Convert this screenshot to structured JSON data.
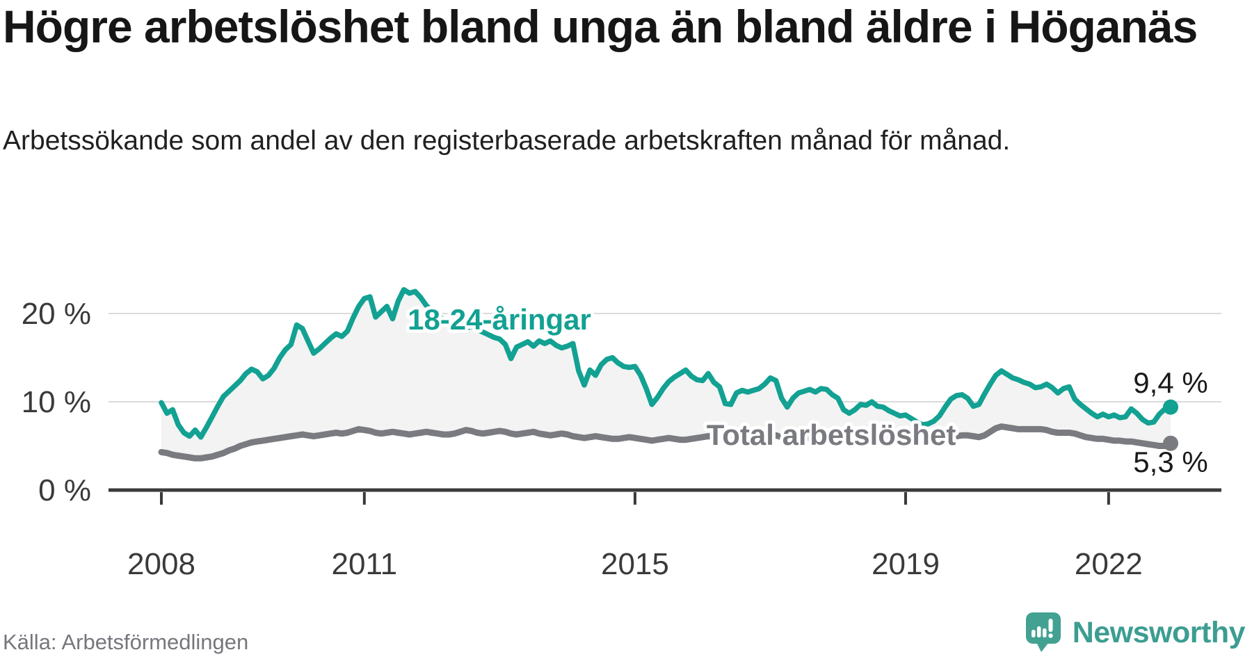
{
  "title": "Högre arbetslöshet bland unga än bland äldre i Höganäs",
  "subtitle": "Arbetssökande som andel av den registerbaserade arbetskraften månad för månad.",
  "source_note": "Källa: Arbetsförmedlingen",
  "brand": {
    "name": "Newsworthy",
    "icon": "speech-bubble-bar-chart-icon",
    "color": "#3c9d91"
  },
  "colors": {
    "youth_line": "#12a192",
    "total_line": "#7a7b80",
    "between_area_fill": "#f3f3f3",
    "gridline": "#dbdbdb",
    "axis": "#3a3a3a",
    "label_dark": "#1a1a1a",
    "source_text": "#76777d"
  },
  "chart_data": {
    "type": "line",
    "title": "Högre arbetslöshet bland unga än bland äldre i Höganäs",
    "subtitle": "Arbetssökande som andel av den registerbaserade arbetskraften månad för månad.",
    "x_start": "2008-01",
    "x_interval": "month",
    "x_end": "2022-12",
    "ylim": [
      0,
      23.5
    ],
    "grid": true,
    "legend_position": "direct-labels-on-chart",
    "fill_between_series": true,
    "y_ticks": [
      {
        "value": 0,
        "label": "0 %"
      },
      {
        "value": 10,
        "label": "10 %"
      },
      {
        "value": 20,
        "label": "20 %"
      }
    ],
    "x_ticks": [
      {
        "month_index": 0,
        "label": "2008"
      },
      {
        "month_index": 36,
        "label": "2011"
      },
      {
        "month_index": 84,
        "label": "2015"
      },
      {
        "month_index": 132,
        "label": "2019"
      },
      {
        "month_index": 168,
        "label": "2022"
      }
    ],
    "series": [
      {
        "name": "18-24-åringar",
        "color": "#12a192",
        "end_label": "9,4 %",
        "end_value": 9.4,
        "values": [
          9.9,
          8.7,
          9.1,
          7.4,
          6.5,
          6.1,
          6.8,
          6.0,
          7.1,
          8.3,
          9.5,
          10.6,
          11.2,
          11.8,
          12.4,
          13.2,
          13.7,
          13.4,
          12.6,
          13.0,
          13.8,
          15.0,
          15.9,
          16.5,
          18.7,
          18.3,
          16.9,
          15.5,
          16.0,
          16.6,
          17.2,
          17.7,
          17.4,
          18.0,
          19.5,
          20.8,
          21.7,
          21.9,
          19.6,
          20.2,
          20.8,
          19.4,
          21.4,
          22.7,
          22.3,
          22.5,
          21.8,
          20.9,
          20.3,
          19.8,
          19.3,
          18.8,
          18.4,
          18.1,
          18.3,
          18.6,
          18.2,
          17.9,
          17.6,
          17.3,
          17.1,
          16.5,
          14.9,
          16.2,
          16.5,
          16.8,
          16.3,
          16.9,
          16.6,
          16.9,
          16.4,
          16.1,
          16.3,
          16.6,
          13.5,
          11.9,
          13.6,
          13.0,
          14.2,
          14.8,
          15.0,
          14.4,
          14.0,
          13.9,
          14.0,
          13.0,
          11.5,
          9.7,
          10.5,
          11.5,
          12.3,
          12.8,
          13.2,
          13.6,
          12.9,
          12.5,
          12.4,
          13.2,
          12.2,
          11.7,
          9.8,
          9.7,
          11.0,
          11.3,
          11.1,
          11.3,
          11.5,
          12.0,
          12.7,
          12.4,
          10.4,
          9.4,
          10.4,
          11.0,
          11.2,
          11.4,
          11.1,
          11.5,
          11.4,
          10.8,
          10.4,
          9.1,
          8.7,
          9.1,
          9.7,
          9.6,
          10.0,
          9.5,
          9.4,
          9.0,
          8.7,
          8.4,
          8.5,
          8.1,
          7.7,
          7.4,
          7.5,
          7.8,
          8.4,
          9.4,
          10.3,
          10.7,
          10.8,
          10.4,
          9.5,
          9.7,
          10.9,
          12.0,
          13.0,
          13.5,
          13.1,
          12.7,
          12.5,
          12.2,
          12.0,
          11.6,
          11.7,
          12.0,
          11.6,
          11.0,
          11.5,
          11.7,
          10.3,
          9.7,
          9.2,
          8.7,
          8.3,
          8.6,
          8.3,
          8.5,
          8.2,
          8.3,
          9.2,
          8.7,
          8.0,
          7.6,
          7.7,
          8.6,
          9.2,
          9.4
        ]
      },
      {
        "name": "Total arbetslöshet",
        "color": "#7a7b80",
        "end_label": "5,3 %",
        "end_value": 5.3,
        "values": [
          4.3,
          4.2,
          4.0,
          3.9,
          3.8,
          3.7,
          3.6,
          3.6,
          3.7,
          3.8,
          4.0,
          4.2,
          4.5,
          4.7,
          5.0,
          5.2,
          5.4,
          5.5,
          5.6,
          5.7,
          5.8,
          5.9,
          6.0,
          6.1,
          6.2,
          6.3,
          6.2,
          6.1,
          6.2,
          6.3,
          6.4,
          6.5,
          6.4,
          6.5,
          6.7,
          6.9,
          6.8,
          6.7,
          6.5,
          6.4,
          6.5,
          6.6,
          6.5,
          6.4,
          6.3,
          6.4,
          6.5,
          6.6,
          6.5,
          6.4,
          6.3,
          6.3,
          6.4,
          6.6,
          6.8,
          6.7,
          6.5,
          6.4,
          6.5,
          6.6,
          6.7,
          6.6,
          6.4,
          6.3,
          6.4,
          6.5,
          6.6,
          6.4,
          6.3,
          6.2,
          6.3,
          6.4,
          6.3,
          6.1,
          6.0,
          5.9,
          6.0,
          6.1,
          6.0,
          5.9,
          5.8,
          5.8,
          5.9,
          6.0,
          5.9,
          5.8,
          5.7,
          5.6,
          5.7,
          5.8,
          5.9,
          5.8,
          5.7,
          5.7,
          5.8,
          5.9,
          6.0,
          6.1,
          6.0,
          5.9,
          5.8,
          5.9,
          6.0,
          6.1,
          6.0,
          5.9,
          5.9,
          6.0,
          6.1,
          6.2,
          6.0,
          5.9,
          5.8,
          5.9,
          6.0,
          5.9,
          5.8,
          5.8,
          5.9,
          6.0,
          5.9,
          5.8,
          5.7,
          5.6,
          5.7,
          5.8,
          5.7,
          5.6,
          5.6,
          5.7,
          5.8,
          5.9,
          6.0,
          5.9,
          5.8,
          5.8,
          5.9,
          6.0,
          6.1,
          6.2,
          6.2,
          6.1,
          6.2,
          6.2,
          6.1,
          6.0,
          6.2,
          6.6,
          7.0,
          7.2,
          7.1,
          7.0,
          6.9,
          6.9,
          6.9,
          6.9,
          6.9,
          6.8,
          6.6,
          6.5,
          6.5,
          6.5,
          6.4,
          6.2,
          6.0,
          5.9,
          5.8,
          5.8,
          5.7,
          5.6,
          5.6,
          5.5,
          5.5,
          5.4,
          5.3,
          5.2,
          5.1,
          5.0,
          5.0,
          5.3
        ]
      }
    ]
  }
}
